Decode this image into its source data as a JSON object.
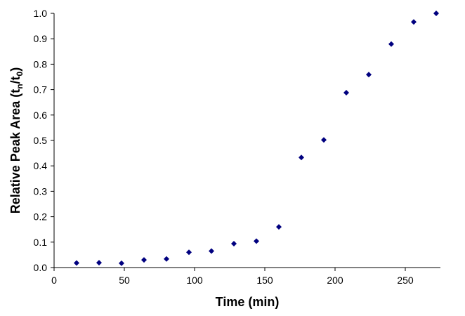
{
  "chart_data": {
    "type": "scatter",
    "xlabel": "Time (min)",
    "ylabel": {
      "prefix": "Relative Peak Area (t",
      "sub1": "n",
      "mid": "/t",
      "sub2": "0",
      "suffix": ")"
    },
    "xlim": [
      0,
      275
    ],
    "ylim": [
      0,
      1.0
    ],
    "x_ticks": [
      0,
      50,
      100,
      150,
      200,
      250
    ],
    "y_ticks": [
      0.0,
      0.1,
      0.2,
      0.3,
      0.4,
      0.5,
      0.6,
      0.7,
      0.8,
      0.9,
      1.0
    ],
    "x_tick_labels": [
      "0",
      "50",
      "100",
      "150",
      "200",
      "250"
    ],
    "y_tick_labels": [
      "0.0",
      "0.1",
      "0.2",
      "0.3",
      "0.4",
      "0.5",
      "0.6",
      "0.7",
      "0.8",
      "0.9",
      "1.0"
    ],
    "grid": false,
    "legend": "none",
    "marker": "diamond",
    "marker_color": "#00007f",
    "series": [
      {
        "x": [
          16,
          32,
          48,
          64,
          80,
          96,
          112,
          128,
          144,
          160,
          176,
          192,
          208,
          224,
          240,
          256,
          272
        ],
        "y": [
          0.018,
          0.019,
          0.017,
          0.03,
          0.034,
          0.06,
          0.065,
          0.094,
          0.104,
          0.16,
          0.433,
          0.502,
          0.688,
          0.759,
          0.879,
          0.966,
          1.0
        ]
      }
    ]
  }
}
